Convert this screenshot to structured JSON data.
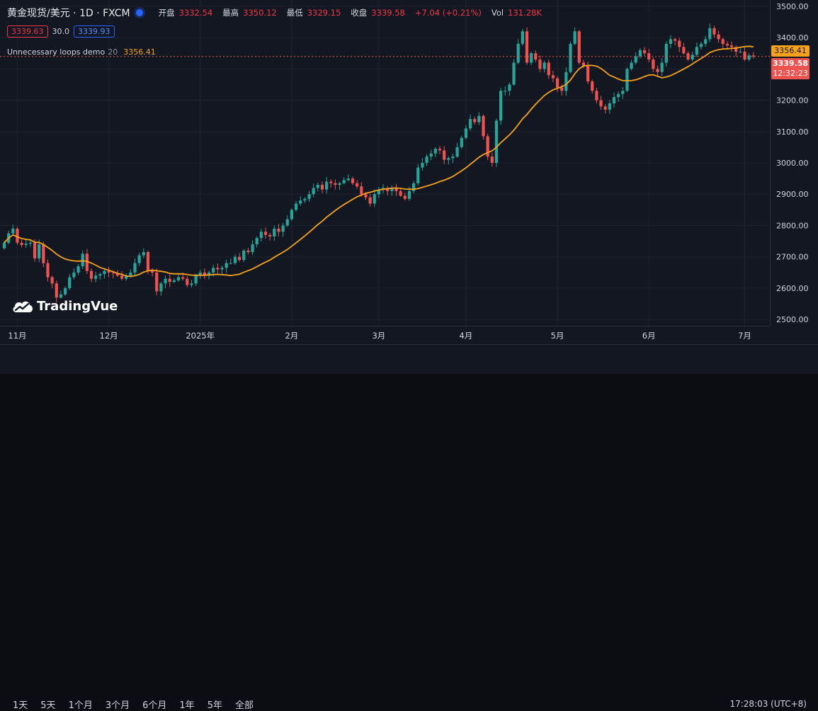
{
  "header": {
    "symbol": "黄金现货/美元 · 1D · FXCM",
    "open_label": "开盘",
    "open": "3332.54",
    "high_label": "最高",
    "high": "3350.12",
    "low_label": "最低",
    "low": "3329.15",
    "close_label": "收盘",
    "close": "3339.58",
    "change": "+7.04 (+0.21%)",
    "vol_label": "Vol",
    "vol": "131.28K"
  },
  "quote": {
    "bid": "3339.63",
    "spread": "30.0",
    "ask": "3339.93"
  },
  "indicator": {
    "name": "Unnecessary loops demo",
    "length": "20",
    "value": "3356.41"
  },
  "logo": {
    "text": "TradingVue"
  },
  "price_tags": {
    "ma": "3356.41",
    "last": "3339.58",
    "countdown": "12:32:23"
  },
  "bottom": {
    "ranges": [
      "1天",
      "5天",
      "1个月",
      "3个月",
      "6个月",
      "1年",
      "5年",
      "全部"
    ],
    "clock": "17:28:03 (UTC+8)"
  },
  "colors": {
    "bg": "#131722",
    "up": "#26a69a",
    "down": "#ef5350",
    "ma": "#f7a21b",
    "grid": "#1e2230",
    "text": "#d1d4dc"
  },
  "chart_data": {
    "type": "candlestick",
    "ylim": [
      2480,
      3520
    ],
    "y_ticks": [
      "3500.00",
      "3400.00",
      "3300.00",
      "3200.00",
      "3100.00",
      "3000.00",
      "2900.00",
      "2800.00",
      "2700.00",
      "2600.00",
      "2500.00"
    ],
    "x_ticks": [
      {
        "label": "11月",
        "index": 3
      },
      {
        "label": "12月",
        "index": 24
      },
      {
        "label": "2025年",
        "index": 45
      },
      {
        "label": "2月",
        "index": 66
      },
      {
        "label": "3月",
        "index": 86
      },
      {
        "label": "4月",
        "index": 106
      },
      {
        "label": "5月",
        "index": 127
      },
      {
        "label": "6月",
        "index": 148
      },
      {
        "label": "7月",
        "index": 170
      }
    ],
    "closes": [
      2745,
      2775,
      2790,
      2745,
      2738,
      2742,
      2745,
      2695,
      2740,
      2680,
      2635,
      2615,
      2570,
      2580,
      2600,
      2635,
      2650,
      2670,
      2710,
      2655,
      2630,
      2640,
      2645,
      2655,
      2650,
      2648,
      2640,
      2630,
      2640,
      2650,
      2680,
      2705,
      2715,
      2655,
      2650,
      2590,
      2615,
      2630,
      2620,
      2625,
      2635,
      2630,
      2610,
      2615,
      2640,
      2650,
      2640,
      2650,
      2665,
      2660,
      2665,
      2680,
      2680,
      2700,
      2690,
      2720,
      2715,
      2740,
      2760,
      2780,
      2770,
      2765,
      2790,
      2780,
      2800,
      2820,
      2850,
      2870,
      2880,
      2885,
      2900,
      2920,
      2930,
      2915,
      2940,
      2935,
      2930,
      2935,
      2945,
      2950,
      2935,
      2925,
      2900,
      2890,
      2870,
      2900,
      2915,
      2920,
      2910,
      2920,
      2910,
      2895,
      2885,
      2910,
      2935,
      2985,
      3000,
      3020,
      3030,
      3045,
      3040,
      3010,
      3015,
      3020,
      3050,
      3080,
      3110,
      3140,
      3130,
      3150,
      3085,
      3020,
      3000,
      3135,
      3230,
      3230,
      3250,
      3320,
      3380,
      3420,
      3320,
      3350,
      3330,
      3300,
      3320,
      3280,
      3270,
      3240,
      3230,
      3290,
      3380,
      3420,
      3320,
      3310,
      3260,
      3230,
      3200,
      3180,
      3170,
      3190,
      3210,
      3220,
      3230,
      3300,
      3320,
      3340,
      3360,
      3350,
      3330,
      3300,
      3290,
      3320,
      3380,
      3395,
      3390,
      3370,
      3350,
      3330,
      3345,
      3370,
      3380,
      3395,
      3430,
      3410,
      3395,
      3380,
      3375,
      3370,
      3355,
      3355,
      3330,
      3343,
      3339.58
    ]
  }
}
